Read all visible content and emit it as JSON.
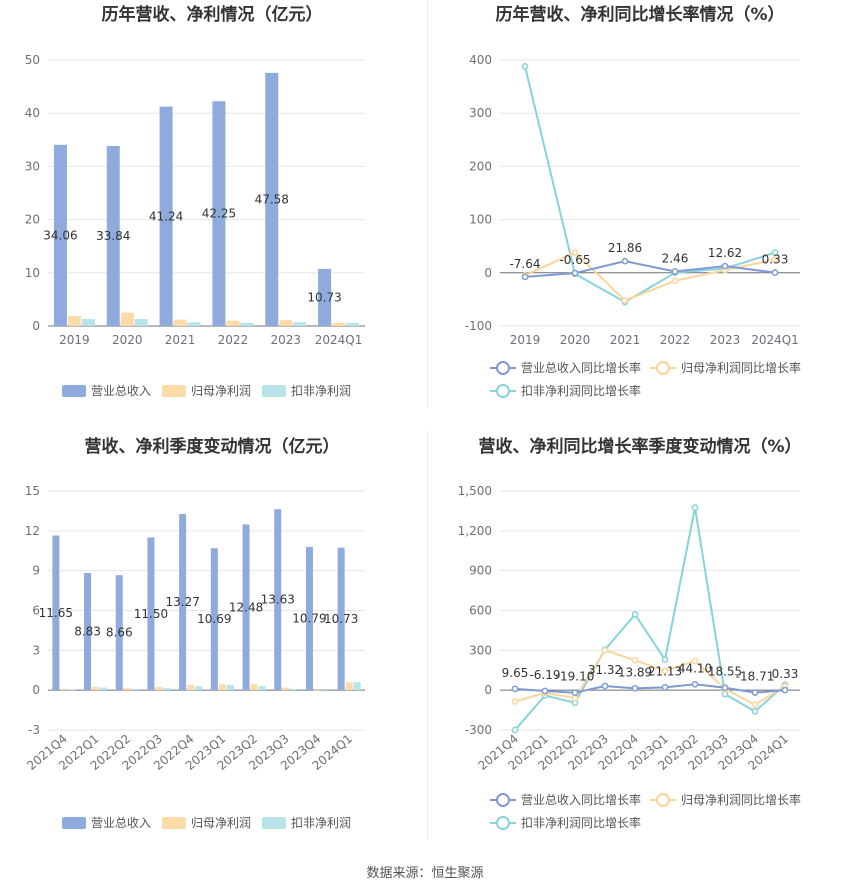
{
  "colors": {
    "revenue": "#8faadc",
    "net_profit": "#fbdca8",
    "non_net_profit": "#b7e4e9",
    "revenue_line": "#7f9ad2",
    "net_line": "#fbd59b",
    "non_line": "#86d3dc"
  },
  "source": "数据来源：恒生聚源",
  "chart_data": [
    {
      "type": "bar",
      "title": "历年营收、净利情况（亿元）",
      "categories": [
        "2019",
        "2020",
        "2021",
        "2022",
        "2023",
        "2024Q1"
      ],
      "ylim": [
        0,
        50
      ],
      "yticks": [
        "0",
        "10",
        "20",
        "30",
        "40",
        "50"
      ],
      "series": [
        {
          "name": "营业总收入",
          "values": [
            34.06,
            33.84,
            41.24,
            42.25,
            47.58,
            10.73
          ]
        },
        {
          "name": "归母净利润",
          "values": [
            1.9,
            2.5,
            1.2,
            1.0,
            1.1,
            0.6
          ]
        },
        {
          "name": "扣非净利润",
          "values": [
            1.3,
            1.3,
            0.7,
            0.6,
            0.7,
            0.6
          ]
        }
      ],
      "data_labels": [
        "34.06",
        "33.84",
        "41.24",
        "42.25",
        "47.58",
        "10.73"
      ],
      "legend_position": "bottom"
    },
    {
      "type": "line",
      "title": "历年营收、净利同比增长率情况（%）",
      "categories": [
        "2019",
        "2020",
        "2021",
        "2022",
        "2023",
        "2024Q1"
      ],
      "ylim": [
        -100,
        400
      ],
      "yticks": [
        "-100",
        "0",
        "100",
        "200",
        "300",
        "400"
      ],
      "series": [
        {
          "name": "营业总收入同比增长率",
          "values": [
            -7.64,
            -0.65,
            21.86,
            2.46,
            12.62,
            0.33
          ]
        },
        {
          "name": "归母净利润同比增长率",
          "values": [
            -5,
            38,
            -52,
            -15,
            5,
            25
          ]
        },
        {
          "name": "扣非净利润同比增长率",
          "values": [
            388,
            -2,
            -55,
            0,
            8,
            38
          ]
        }
      ],
      "data_labels": [
        "-7.64",
        "-0.65",
        "21.86",
        "2.46",
        "12.62",
        "0.33"
      ],
      "legend_position": "bottom"
    },
    {
      "type": "bar",
      "title": "营收、净利季度变动情况（亿元）",
      "categories": [
        "2021Q4",
        "2022Q1",
        "2022Q2",
        "2022Q3",
        "2022Q4",
        "2023Q1",
        "2023Q2",
        "2023Q3",
        "2023Q4",
        "2024Q1"
      ],
      "ylim": [
        -3,
        15
      ],
      "yticks": [
        "-3",
        "0",
        "3",
        "6",
        "9",
        "12",
        "15"
      ],
      "series": [
        {
          "name": "营业总收入",
          "values": [
            11.65,
            8.83,
            8.66,
            11.5,
            13.27,
            10.69,
            12.48,
            13.63,
            10.79,
            10.73
          ]
        },
        {
          "name": "归母净利润",
          "values": [
            0.1,
            0.25,
            0.15,
            0.25,
            0.4,
            0.45,
            0.45,
            0.2,
            0.0,
            0.6
          ]
        },
        {
          "name": "扣非净利润",
          "values": [
            0.05,
            0.2,
            0.1,
            0.15,
            0.3,
            0.4,
            0.3,
            0.1,
            -0.1,
            0.6
          ]
        }
      ],
      "data_labels": [
        "11.65",
        "8.83",
        "8.66",
        "11.50",
        "13.27",
        "10.69",
        "12.48",
        "13.63",
        "10.79",
        "10.73"
      ],
      "legend_position": "bottom"
    },
    {
      "type": "line",
      "title": "营收、净利同比增长率季度变动情况（%）",
      "categories": [
        "2021Q4",
        "2022Q1",
        "2022Q2",
        "2022Q3",
        "2022Q4",
        "2023Q1",
        "2023Q2",
        "2023Q3",
        "2023Q4",
        "2024Q1"
      ],
      "ylim": [
        -300,
        1500
      ],
      "yticks": [
        "-300",
        "0",
        "300",
        "600",
        "900",
        "1,200",
        "1,500"
      ],
      "series": [
        {
          "name": "营业总收入同比增长率",
          "values": [
            9.65,
            -6.19,
            -19.1,
            31.32,
            13.89,
            21.13,
            44.1,
            18.55,
            -18.71,
            0.33
          ]
        },
        {
          "name": "归母净利润同比增长率",
          "values": [
            -85,
            -20,
            -60,
            300,
            225,
            145,
            220,
            10,
            -110,
            30
          ]
        },
        {
          "name": "扣非净利润同比增长率",
          "values": [
            -300,
            -40,
            -95,
            305,
            570,
            230,
            1375,
            -30,
            -160,
            40
          ]
        }
      ],
      "data_labels": [
        "9.65",
        "-6.19",
        "-19.10",
        "31.32",
        "13.89",
        "21.13",
        "44.10",
        "18.55",
        "-18.71",
        "0.33"
      ],
      "legend_position": "bottom"
    }
  ]
}
